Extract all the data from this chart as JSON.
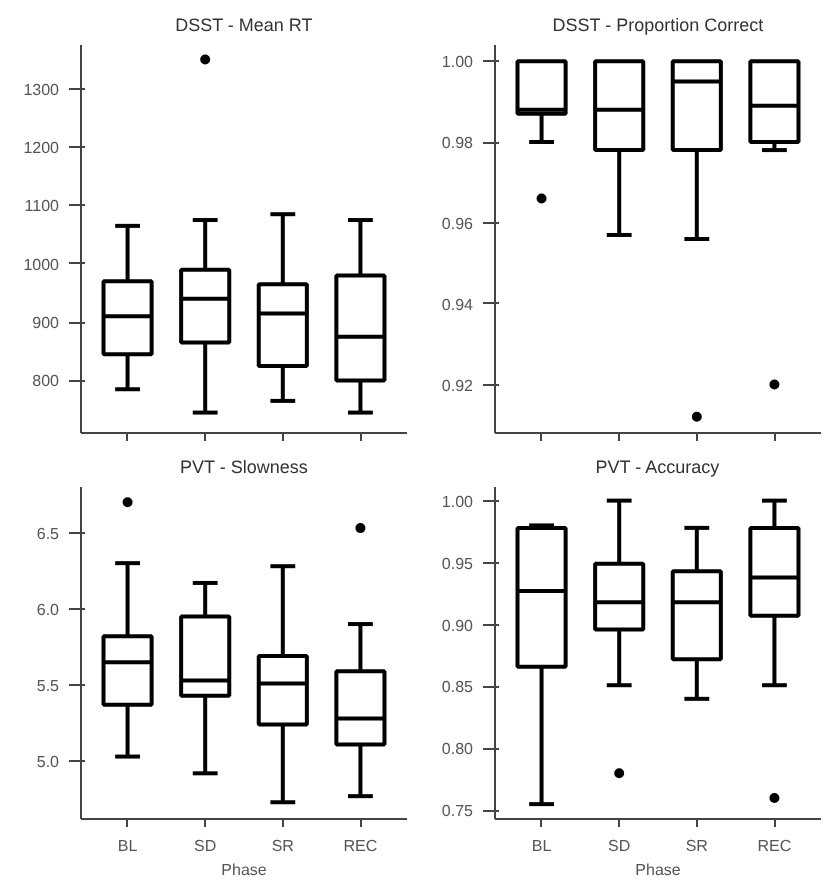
{
  "chart_data": [
    {
      "type": "box",
      "title": "DSST - Mean RT",
      "categories": [
        null,
        null,
        null,
        null
      ],
      "tick_labels": "y",
      "ylim": [
        710,
        1375
      ],
      "yticks": [
        800,
        900,
        1000,
        1100,
        1200,
        1300
      ],
      "boxes": [
        {
          "low": 785,
          "q1": 845,
          "median": 910,
          "q3": 970,
          "high": 1065
        },
        {
          "low": 745,
          "q1": 865,
          "median": 940,
          "q3": 990,
          "high": 1075,
          "outliers": [
            1350
          ]
        },
        {
          "low": 765,
          "q1": 825,
          "median": 915,
          "q3": 965,
          "high": 1085
        },
        {
          "low": 745,
          "q1": 800,
          "median": 875,
          "q3": 980,
          "high": 1075
        }
      ]
    },
    {
      "type": "box",
      "title": "DSST - Proportion Correct",
      "categories": [
        null,
        null,
        null,
        null
      ],
      "tick_labels": "y",
      "ylim": [
        0.908,
        1.004
      ],
      "yticks": [
        {
          "value": 0.92,
          "label": "0.92"
        },
        {
          "value": 0.94,
          "label": "0.94"
        },
        {
          "value": 0.96,
          "label": "0.96"
        },
        {
          "value": 0.98,
          "label": "0.98"
        },
        {
          "value": 1.0,
          "label": "1.00"
        }
      ],
      "boxes": [
        {
          "low": 0.98,
          "q1": 0.987,
          "median": 0.988,
          "q3": 1.0,
          "high": 1.0,
          "outliers": [
            0.966
          ]
        },
        {
          "low": 0.957,
          "q1": 0.978,
          "median": 0.988,
          "q3": 1.0,
          "high": 1.0
        },
        {
          "low": 0.956,
          "q1": 0.978,
          "median": 0.995,
          "q3": 1.0,
          "high": 1.0,
          "outliers": [
            0.912
          ]
        },
        {
          "low": 0.978,
          "q1": 0.98,
          "median": 0.989,
          "q3": 1.0,
          "high": 1.0,
          "outliers": [
            0.92
          ]
        }
      ]
    },
    {
      "type": "box",
      "title": "PVT - Slowness",
      "xlabel": "Phase",
      "categories": [
        "BL",
        "SD",
        "SR",
        "REC"
      ],
      "ylim": [
        4.62,
        6.8
      ],
      "yticks": [
        {
          "value": 5.0,
          "label": "5.0"
        },
        {
          "value": 5.5,
          "label": "5.5"
        },
        {
          "value": 6.0,
          "label": "6.0"
        },
        {
          "value": 6.5,
          "label": "6.5"
        }
      ],
      "boxes": [
        {
          "low": 5.03,
          "q1": 5.37,
          "median": 5.65,
          "q3": 5.82,
          "high": 6.3,
          "outliers": [
            6.7
          ]
        },
        {
          "low": 4.92,
          "q1": 5.43,
          "median": 5.53,
          "q3": 5.95,
          "high": 6.17
        },
        {
          "low": 4.73,
          "q1": 5.24,
          "median": 5.51,
          "q3": 5.69,
          "high": 6.28
        },
        {
          "low": 4.77,
          "q1": 5.11,
          "median": 5.28,
          "q3": 5.59,
          "high": 5.9,
          "outliers": [
            6.53
          ]
        }
      ]
    },
    {
      "type": "box",
      "title": "PVT - Accuracy",
      "xlabel": "Phase",
      "categories": [
        "BL",
        "SD",
        "SR",
        "REC"
      ],
      "ylim": [
        0.743,
        1.011
      ],
      "yticks": [
        {
          "value": 0.75,
          "label": "0.75"
        },
        {
          "value": 0.8,
          "label": "0.80"
        },
        {
          "value": 0.85,
          "label": "0.85"
        },
        {
          "value": 0.9,
          "label": "0.90"
        },
        {
          "value": 0.95,
          "label": "0.95"
        },
        {
          "value": 1.0,
          "label": "1.00"
        }
      ],
      "boxes": [
        {
          "low": 0.755,
          "q1": 0.866,
          "median": 0.927,
          "q3": 0.978,
          "high": 0.98
        },
        {
          "low": 0.851,
          "q1": 0.896,
          "median": 0.918,
          "q3": 0.949,
          "high": 1.0,
          "outliers": [
            0.78
          ]
        },
        {
          "low": 0.84,
          "q1": 0.872,
          "median": 0.918,
          "q3": 0.943,
          "high": 0.978
        },
        {
          "low": 0.851,
          "q1": 0.907,
          "median": 0.938,
          "q3": 0.978,
          "high": 1.0,
          "outliers": [
            0.76
          ]
        }
      ]
    }
  ]
}
